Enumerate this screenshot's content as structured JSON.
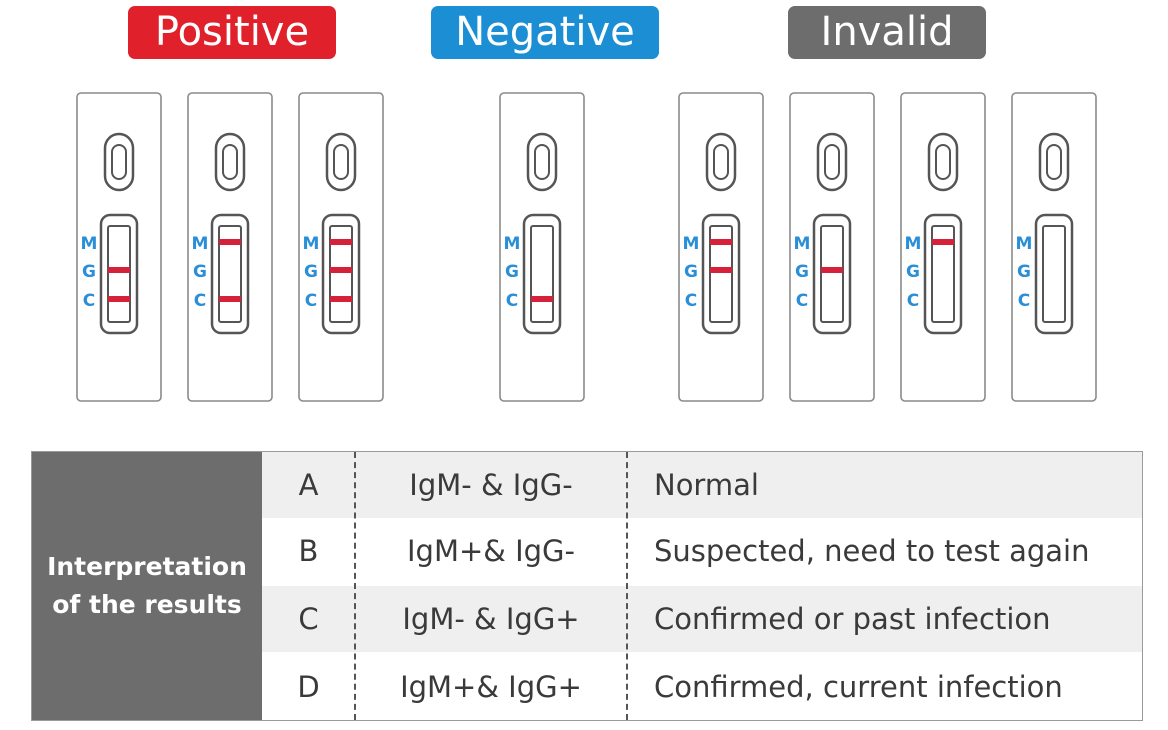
{
  "badges": [
    {
      "label": "Positive",
      "color": "#e0202b"
    },
    {
      "label": "Negative",
      "color": "#1c8fd4"
    },
    {
      "label": "Invalid",
      "color": "#6d6d6d"
    }
  ],
  "strip_labels": [
    "M",
    "G",
    "C"
  ],
  "label_color": "#2a8fd6",
  "line_color": "#d6213a",
  "cassettes": [
    {
      "group": "positive",
      "lines": [
        "G",
        "C"
      ]
    },
    {
      "group": "positive",
      "lines": [
        "M",
        "C"
      ]
    },
    {
      "group": "positive",
      "lines": [
        "M",
        "G",
        "C"
      ]
    },
    {
      "group": "negative",
      "lines": [
        "C"
      ]
    },
    {
      "group": "invalid",
      "lines": [
        "M",
        "G"
      ]
    },
    {
      "group": "invalid",
      "lines": [
        "G"
      ]
    },
    {
      "group": "invalid",
      "lines": [
        "M"
      ]
    },
    {
      "group": "invalid",
      "lines": []
    }
  ],
  "table": {
    "header_line1": "Interpretation",
    "header_line2": "of the results",
    "rows": [
      {
        "letter": "A",
        "antibodies": "IgM- & IgG-",
        "result": "Normal"
      },
      {
        "letter": "B",
        "antibodies": "IgM+& IgG-",
        "result": "Suspected, need to test again"
      },
      {
        "letter": "C",
        "antibodies": "IgM- & IgG+",
        "result": "Confirmed or past infection"
      },
      {
        "letter": "D",
        "antibodies": "IgM+& IgG+",
        "result": "Confirmed, current infection"
      }
    ]
  }
}
